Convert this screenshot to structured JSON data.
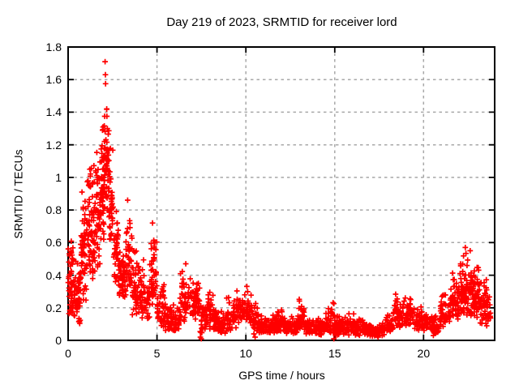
{
  "window": {
    "background": "#ffffff"
  },
  "chart_data": {
    "type": "scatter",
    "title": "Day 219 of 2023, SRMTID for receiver lord",
    "xlabel": "GPS time / hours",
    "ylabel": "SRMTID / TECUs",
    "xlim": [
      0,
      24
    ],
    "ylim": [
      0,
      1.8
    ],
    "xticks": [
      0,
      5,
      10,
      15,
      20
    ],
    "xtick_labels": [
      "0",
      "5",
      "10",
      "15",
      "20"
    ],
    "yticks": [
      0,
      0.2,
      0.4,
      0.6,
      0.8,
      1.0,
      1.2,
      1.4,
      1.6,
      1.8
    ],
    "ytick_labels": [
      "0",
      "0.2",
      "0.4",
      "0.6",
      "0.8",
      "1",
      "1.2",
      "1.4",
      "1.6",
      "1.8"
    ],
    "grid": "dashed",
    "legend": "none",
    "marker": "plus",
    "marker_size_px": 7,
    "marker_color": "#ff0000",
    "grid_color": "#a8a8a8",
    "axis_color": "#000000",
    "seed": 7,
    "envelope_format": [
      "t_start_h",
      "t_end_h",
      "y_min_TECU",
      "y_max_TECU",
      "point_count",
      "low_bias_exponent"
    ],
    "envelope": [
      [
        0.0,
        0.3,
        0.15,
        0.63,
        50,
        1.3
      ],
      [
        0.3,
        0.7,
        0.1,
        0.52,
        55,
        1.4
      ],
      [
        0.7,
        1.05,
        0.2,
        0.98,
        55,
        1.25
      ],
      [
        1.05,
        1.45,
        0.35,
        1.08,
        62,
        1.25
      ],
      [
        1.45,
        1.85,
        0.4,
        1.22,
        65,
        1.25
      ],
      [
        1.85,
        2.05,
        0.6,
        1.45,
        45,
        1.35
      ],
      [
        2.05,
        2.3,
        0.8,
        1.52,
        40,
        1.5
      ],
      [
        2.3,
        2.55,
        0.6,
        1.25,
        40,
        1.35
      ],
      [
        2.55,
        2.85,
        0.3,
        0.92,
        42,
        1.3
      ],
      [
        2.85,
        3.25,
        0.25,
        0.62,
        48,
        1.35
      ],
      [
        3.25,
        3.6,
        0.3,
        0.88,
        42,
        1.4
      ],
      [
        3.6,
        4.1,
        0.15,
        0.6,
        50,
        1.4
      ],
      [
        4.1,
        4.6,
        0.12,
        0.5,
        48,
        1.4
      ],
      [
        4.6,
        5.0,
        0.18,
        0.72,
        48,
        1.45
      ],
      [
        5.0,
        5.45,
        0.08,
        0.36,
        45,
        1.4
      ],
      [
        5.45,
        6.3,
        0.06,
        0.27,
        70,
        1.5
      ],
      [
        6.3,
        6.85,
        0.1,
        0.47,
        48,
        1.45
      ],
      [
        6.85,
        7.4,
        0.13,
        0.42,
        52,
        1.35
      ],
      [
        7.4,
        7.65,
        0.02,
        0.3,
        22,
        1.3
      ],
      [
        7.65,
        8.2,
        0.07,
        0.33,
        50,
        1.45
      ],
      [
        8.2,
        8.9,
        0.04,
        0.2,
        58,
        1.4
      ],
      [
        8.9,
        9.5,
        0.06,
        0.28,
        45,
        1.5
      ],
      [
        9.5,
        10.35,
        0.09,
        0.36,
        65,
        1.45
      ],
      [
        10.35,
        10.7,
        0.03,
        0.26,
        30,
        1.4
      ],
      [
        10.7,
        11.7,
        0.04,
        0.16,
        78,
        1.35
      ],
      [
        11.7,
        12.2,
        0.05,
        0.2,
        42,
        1.4
      ],
      [
        12.2,
        12.9,
        0.04,
        0.16,
        56,
        1.35
      ],
      [
        12.9,
        13.3,
        0.06,
        0.28,
        40,
        1.5
      ],
      [
        13.3,
        14.5,
        0.03,
        0.15,
        88,
        1.35
      ],
      [
        14.5,
        15.05,
        0.04,
        0.26,
        46,
        1.5
      ],
      [
        15.05,
        16.1,
        0.03,
        0.18,
        80,
        1.45
      ],
      [
        16.1,
        16.9,
        0.03,
        0.14,
        60,
        1.4
      ],
      [
        16.9,
        17.8,
        0.02,
        0.11,
        70,
        1.35
      ],
      [
        17.8,
        18.3,
        0.04,
        0.18,
        40,
        1.4
      ],
      [
        18.3,
        18.8,
        0.07,
        0.3,
        42,
        1.5
      ],
      [
        18.8,
        19.5,
        0.08,
        0.28,
        55,
        1.45
      ],
      [
        19.5,
        20.3,
        0.06,
        0.22,
        60,
        1.4
      ],
      [
        20.3,
        20.9,
        0.04,
        0.17,
        45,
        1.35
      ],
      [
        20.9,
        21.5,
        0.08,
        0.3,
        48,
        1.45
      ],
      [
        21.5,
        22.0,
        0.12,
        0.45,
        55,
        1.45
      ],
      [
        22.0,
        22.6,
        0.15,
        0.55,
        75,
        1.4
      ],
      [
        22.6,
        23.1,
        0.14,
        0.5,
        70,
        1.4
      ],
      [
        23.1,
        23.55,
        0.1,
        0.4,
        45,
        1.4
      ],
      [
        23.55,
        23.8,
        0.08,
        0.3,
        20,
        1.4
      ]
    ],
    "peak_points": [
      [
        2.08,
        1.71
      ],
      [
        2.1,
        1.63
      ],
      [
        2.11,
        1.575
      ],
      [
        2.17,
        1.42
      ],
      [
        2.18,
        1.375
      ],
      [
        2.21,
        1.3
      ],
      [
        2.05,
        1.22
      ],
      [
        2.07,
        1.18
      ],
      [
        2.0,
        1.13
      ],
      [
        2.14,
        1.115
      ],
      [
        2.23,
        1.1
      ],
      [
        1.95,
        1.05
      ],
      [
        2.27,
        1.02
      ],
      [
        3.35,
        0.86
      ],
      [
        4.75,
        0.72
      ],
      [
        6.62,
        0.47
      ],
      [
        22.35,
        0.57
      ],
      [
        22.62,
        0.55
      ]
    ],
    "floor_points": [
      [
        7.44,
        0.02
      ],
      [
        7.49,
        0.01
      ],
      [
        10.52,
        0.02
      ],
      [
        14.95,
        0.01
      ],
      [
        17.45,
        0.02
      ],
      [
        20.55,
        0.03
      ]
    ],
    "max_value_TECU": 1.71,
    "max_value_time_h": 2.1
  }
}
